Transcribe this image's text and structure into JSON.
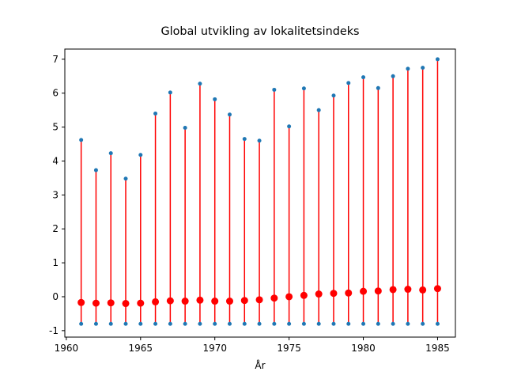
{
  "chart_data": {
    "type": "range",
    "title": "Global utvikling av lokalitetsindeks",
    "xlabel": "År",
    "x": [
      1961,
      1962,
      1963,
      1964,
      1965,
      1966,
      1967,
      1968,
      1969,
      1970,
      1971,
      1972,
      1973,
      1974,
      1975,
      1976,
      1977,
      1978,
      1979,
      1980,
      1981,
      1982,
      1983,
      1984,
      1985
    ],
    "series": [
      {
        "role": "max",
        "color": "#1f77b4",
        "values": [
          4.62,
          3.73,
          4.23,
          3.48,
          4.18,
          5.4,
          6.02,
          4.98,
          6.28,
          5.82,
          5.37,
          4.65,
          4.6,
          6.1,
          5.02,
          6.14,
          5.5,
          5.93,
          6.3,
          6.47,
          6.15,
          6.5,
          6.72,
          6.75,
          7.0
        ]
      },
      {
        "role": "min",
        "color": "#1f77b4",
        "values": [
          -0.8,
          -0.8,
          -0.8,
          -0.8,
          -0.8,
          -0.8,
          -0.8,
          -0.8,
          -0.8,
          -0.8,
          -0.8,
          -0.8,
          -0.8,
          -0.8,
          -0.8,
          -0.8,
          -0.8,
          -0.8,
          -0.8,
          -0.8,
          -0.8,
          -0.8,
          -0.8,
          -0.8,
          -0.8
        ]
      },
      {
        "role": "mean",
        "color": "#ff0000",
        "values": [
          -0.17,
          -0.19,
          -0.18,
          -0.2,
          -0.19,
          -0.15,
          -0.12,
          -0.13,
          -0.1,
          -0.13,
          -0.13,
          -0.11,
          -0.09,
          -0.04,
          0.0,
          0.04,
          0.08,
          0.1,
          0.11,
          0.16,
          0.17,
          0.21,
          0.22,
          0.2,
          0.24
        ]
      }
    ],
    "range_color": "#ff0000",
    "xlim": [
      1959.9,
      1986.2
    ],
    "xticks": [
      1960,
      1965,
      1970,
      1975,
      1980,
      1985
    ],
    "ylim": [
      -1.19,
      7.3
    ],
    "yticks": [
      -1,
      0,
      1,
      2,
      3,
      4,
      5,
      6,
      7
    ]
  }
}
